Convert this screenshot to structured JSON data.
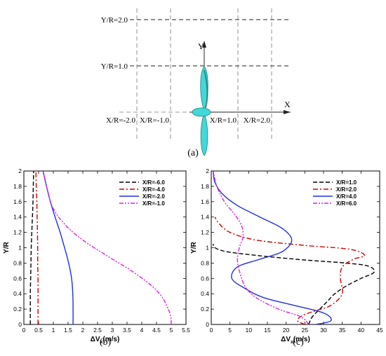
{
  "panel_a": {
    "caption": "(a)",
    "y_axis_label": "Y",
    "x_axis_label": "X",
    "horizontal_lines": [
      {
        "label": "Y/R=2.0",
        "value": 2.0
      },
      {
        "label": "Y/R=1.0",
        "value": 1.0
      }
    ],
    "vertical_lines": [
      {
        "label": "X/R=-2.0",
        "value": -2.0
      },
      {
        "label": "X/R=-1.0",
        "value": -1.0
      },
      {
        "label": "X/R=1.0",
        "value": 1.0
      },
      {
        "label": "X/R=2.0",
        "value": 2.0
      }
    ],
    "propeller_color": "#40d8d8"
  },
  "chart_data": [
    {
      "type": "line",
      "caption": "(b)",
      "xlabel": "ΔV",
      "xlabel_sub": "x",
      "xlabel_unit": "(m/s)",
      "ylabel": "Y/R",
      "xlim": [
        0,
        5.5
      ],
      "ylim": [
        0,
        2
      ],
      "xticks": [
        "0",
        "0.5",
        "1",
        "1.5",
        "2",
        "2.5",
        "3",
        "3.5",
        "4",
        "4.5",
        "5",
        "5.5"
      ],
      "yticks": [
        "0",
        "0.2",
        "0.4",
        "0.6",
        "0.8",
        "1",
        "1.2",
        "1.4",
        "1.6",
        "1.8",
        "2"
      ],
      "grid": false,
      "legend": "top-right",
      "series": [
        {
          "name": "X/R=-6.0",
          "color": "#000000",
          "dash": "6,3",
          "x": [
            0.22,
            0.22,
            0.22,
            0.23,
            0.24,
            0.25,
            0.27,
            0.29,
            0.31,
            0.32,
            0.33
          ],
          "y": [
            0.0,
            0.2,
            0.4,
            0.6,
            0.8,
            1.0,
            1.2,
            1.4,
            1.6,
            1.8,
            2.0
          ]
        },
        {
          "name": "X/R=-4.0",
          "color": "#cc0000",
          "dash": "7,3,2,3",
          "x": [
            0.48,
            0.48,
            0.48,
            0.48,
            0.47,
            0.47,
            0.46,
            0.45,
            0.44,
            0.42,
            0.41
          ],
          "y": [
            0.0,
            0.2,
            0.4,
            0.6,
            0.8,
            1.0,
            1.2,
            1.4,
            1.6,
            1.8,
            2.0
          ]
        },
        {
          "name": "X/R=-2.0",
          "color": "#1f2fe0",
          "dash": "",
          "x": [
            1.67,
            1.67,
            1.66,
            1.62,
            1.52,
            1.38,
            1.23,
            1.06,
            0.9,
            0.77,
            0.65
          ],
          "y": [
            0.0,
            0.2,
            0.4,
            0.6,
            0.8,
            1.0,
            1.2,
            1.4,
            1.6,
            1.8,
            2.0
          ]
        },
        {
          "name": "X/R=-1.0",
          "color": "#e020e0",
          "dash": "6,2,2,2,2,2",
          "x": [
            5.0,
            4.98,
            4.9,
            4.7,
            4.35,
            3.65,
            2.8,
            2.0,
            1.4,
            0.95,
            0.65
          ],
          "y": [
            0.0,
            0.1,
            0.2,
            0.35,
            0.5,
            0.7,
            0.9,
            1.1,
            1.3,
            1.55,
            2.0
          ]
        }
      ]
    },
    {
      "type": "line",
      "caption": "(c)",
      "xlabel": "ΔV",
      "xlabel_sub": "x",
      "xlabel_unit": "(m/s)",
      "ylabel": "Y/R",
      "xlim": [
        0,
        45
      ],
      "ylim": [
        0,
        2
      ],
      "xticks": [
        "0",
        "5",
        "10",
        "15",
        "20",
        "25",
        "30",
        "35",
        "40",
        "45"
      ],
      "yticks": [
        "0",
        "0.2",
        "0.4",
        "0.6",
        "0.8",
        "1",
        "1.2",
        "1.4",
        "1.6",
        "1.8",
        "2"
      ],
      "grid": false,
      "legend": "top-right",
      "series": [
        {
          "name": "X/R=1.0",
          "color": "#000000",
          "dash": "6,3",
          "x": [
            26,
            27,
            29,
            31,
            33,
            36,
            40,
            43.5,
            42,
            36,
            25,
            12,
            4,
            1,
            0.5
          ],
          "y": [
            0.0,
            0.1,
            0.2,
            0.3,
            0.4,
            0.5,
            0.6,
            0.68,
            0.76,
            0.8,
            0.84,
            0.9,
            0.95,
            1.0,
            1.05
          ]
        },
        {
          "name": "X/R=2.0",
          "color": "#cc0000",
          "dash": "7,3,2,3",
          "x": [
            25,
            23,
            24.5,
            28,
            32,
            35,
            34.5,
            35,
            38,
            41,
            37,
            25,
            12,
            5,
            2,
            1
          ],
          "y": [
            0.0,
            0.05,
            0.12,
            0.18,
            0.25,
            0.4,
            0.6,
            0.75,
            0.85,
            0.9,
            0.98,
            1.03,
            1.1,
            1.2,
            1.32,
            1.4
          ]
        },
        {
          "name": "X/R=4.0",
          "color": "#1f2fe0",
          "dash": "",
          "x": [
            28,
            32,
            30,
            22,
            14,
            9,
            5.5,
            7,
            13,
            19,
            21.5,
            19,
            13,
            7,
            3,
            1,
            0.5
          ],
          "y": [
            0.0,
            0.05,
            0.15,
            0.25,
            0.35,
            0.47,
            0.6,
            0.75,
            0.85,
            0.95,
            1.1,
            1.25,
            1.4,
            1.55,
            1.7,
            1.85,
            2.0
          ]
        },
        {
          "name": "X/R=6.0",
          "color": "#e020e0",
          "dash": "6,2,2,2,2,2",
          "x": [
            26,
            24,
            18,
            12,
            9,
            7.5,
            7,
            7.5,
            8.5,
            8,
            6,
            3.5,
            1.5,
            0.5
          ],
          "y": [
            0.0,
            0.1,
            0.2,
            0.35,
            0.5,
            0.7,
            0.85,
            1.0,
            1.15,
            1.3,
            1.45,
            1.6,
            1.8,
            2.0
          ]
        }
      ]
    }
  ]
}
